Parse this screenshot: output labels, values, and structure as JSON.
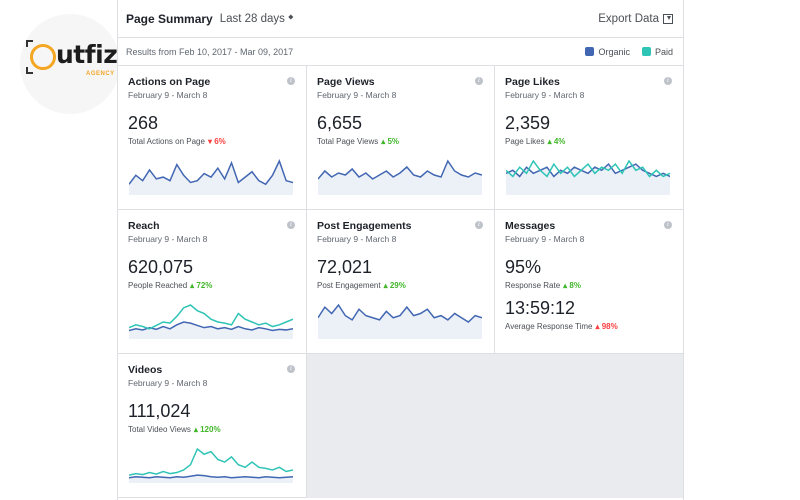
{
  "logo": {
    "wordmark": "utfiz",
    "sub": "AGENCY"
  },
  "header": {
    "title": "Page Summary",
    "range": "Last 28 days",
    "export_label": "Export Data"
  },
  "subheader": {
    "results": "Results from Feb 10, 2017 - Mar 09, 2017",
    "legend": [
      {
        "label": "Organic",
        "color": "#4267b2"
      },
      {
        "label": "Paid",
        "color": "#2ec4b6"
      }
    ]
  },
  "colors": {
    "organic": "#4267b2",
    "paid": "#2ec4b6",
    "up": "#42b72a",
    "down": "#fa3e3e"
  },
  "cards": [
    {
      "title": "Actions on Page",
      "subtitle": "February 9 - March 8",
      "value": "268",
      "label": "Total Actions on Page",
      "change": "6%",
      "direction": "down",
      "organic": [
        30,
        55,
        40,
        70,
        45,
        50,
        40,
        85,
        55,
        35,
        40,
        60,
        50,
        75,
        45,
        90,
        35,
        50,
        65,
        40,
        30,
        55,
        95,
        40,
        35
      ],
      "paid": []
    },
    {
      "title": "Page Views",
      "subtitle": "February 9 - March 8",
      "value": "6,655",
      "label": "Total Page Views",
      "change": "5%",
      "direction": "up",
      "organic": [
        40,
        60,
        45,
        55,
        50,
        65,
        45,
        55,
        40,
        50,
        60,
        45,
        55,
        70,
        50,
        45,
        60,
        50,
        45,
        85,
        60,
        50,
        45,
        55,
        50
      ],
      "paid": []
    },
    {
      "title": "Page Likes",
      "subtitle": "February 9 - March 8",
      "value": "2,359",
      "label": "Page Likes",
      "change": "4%",
      "direction": "up",
      "organic": [
        35,
        40,
        30,
        45,
        35,
        40,
        45,
        30,
        40,
        35,
        45,
        40,
        35,
        45,
        40,
        50,
        35,
        40,
        45,
        50,
        40,
        35,
        30,
        35,
        30
      ],
      "paid": [
        40,
        30,
        45,
        35,
        55,
        40,
        30,
        50,
        35,
        45,
        30,
        40,
        50,
        35,
        45,
        40,
        50,
        35,
        55,
        40,
        45,
        30,
        40,
        30,
        35
      ]
    },
    {
      "title": "Reach",
      "subtitle": "February 9 - March 8",
      "value": "620,075",
      "label": "People Reached",
      "change": "72%",
      "direction": "up",
      "organic": [
        15,
        18,
        16,
        20,
        17,
        22,
        18,
        25,
        30,
        28,
        24,
        20,
        22,
        18,
        20,
        17,
        22,
        18,
        16,
        20,
        18,
        15,
        17,
        16,
        18
      ],
      "paid": [
        20,
        25,
        22,
        18,
        24,
        30,
        28,
        40,
        55,
        60,
        50,
        45,
        35,
        30,
        28,
        25,
        45,
        35,
        30,
        25,
        28,
        22,
        25,
        30,
        35
      ]
    },
    {
      "title": "Post Engagements",
      "subtitle": "February 9 - March 8",
      "value": "72,021",
      "label": "Post Engagement",
      "change": "29%",
      "direction": "up",
      "organic": [
        50,
        75,
        60,
        80,
        55,
        45,
        70,
        55,
        50,
        45,
        65,
        50,
        55,
        75,
        55,
        60,
        70,
        50,
        55,
        45,
        60,
        50,
        40,
        55,
        50
      ],
      "paid": []
    },
    {
      "title": "Messages",
      "subtitle": "February 9 - March 8",
      "value": "95%",
      "label": "Response Rate",
      "change": "8%",
      "direction": "up",
      "value2": "13:59:12",
      "label2": "Average Response Time",
      "change2": "98%",
      "direction2": "down",
      "organic": [],
      "paid": []
    },
    {
      "title": "Videos",
      "subtitle": "February 9 - March 8",
      "value": "111,024",
      "label": "Total Video Views",
      "change": "120%",
      "direction": "up",
      "organic": [
        10,
        12,
        11,
        10,
        12,
        11,
        10,
        12,
        11,
        13,
        15,
        14,
        12,
        11,
        12,
        10,
        11,
        12,
        11,
        10,
        12,
        11,
        10,
        11,
        12
      ],
      "paid": [
        15,
        18,
        16,
        20,
        17,
        22,
        18,
        20,
        25,
        35,
        65,
        55,
        60,
        45,
        40,
        50,
        35,
        30,
        40,
        30,
        28,
        25,
        30,
        22,
        25
      ]
    }
  ]
}
